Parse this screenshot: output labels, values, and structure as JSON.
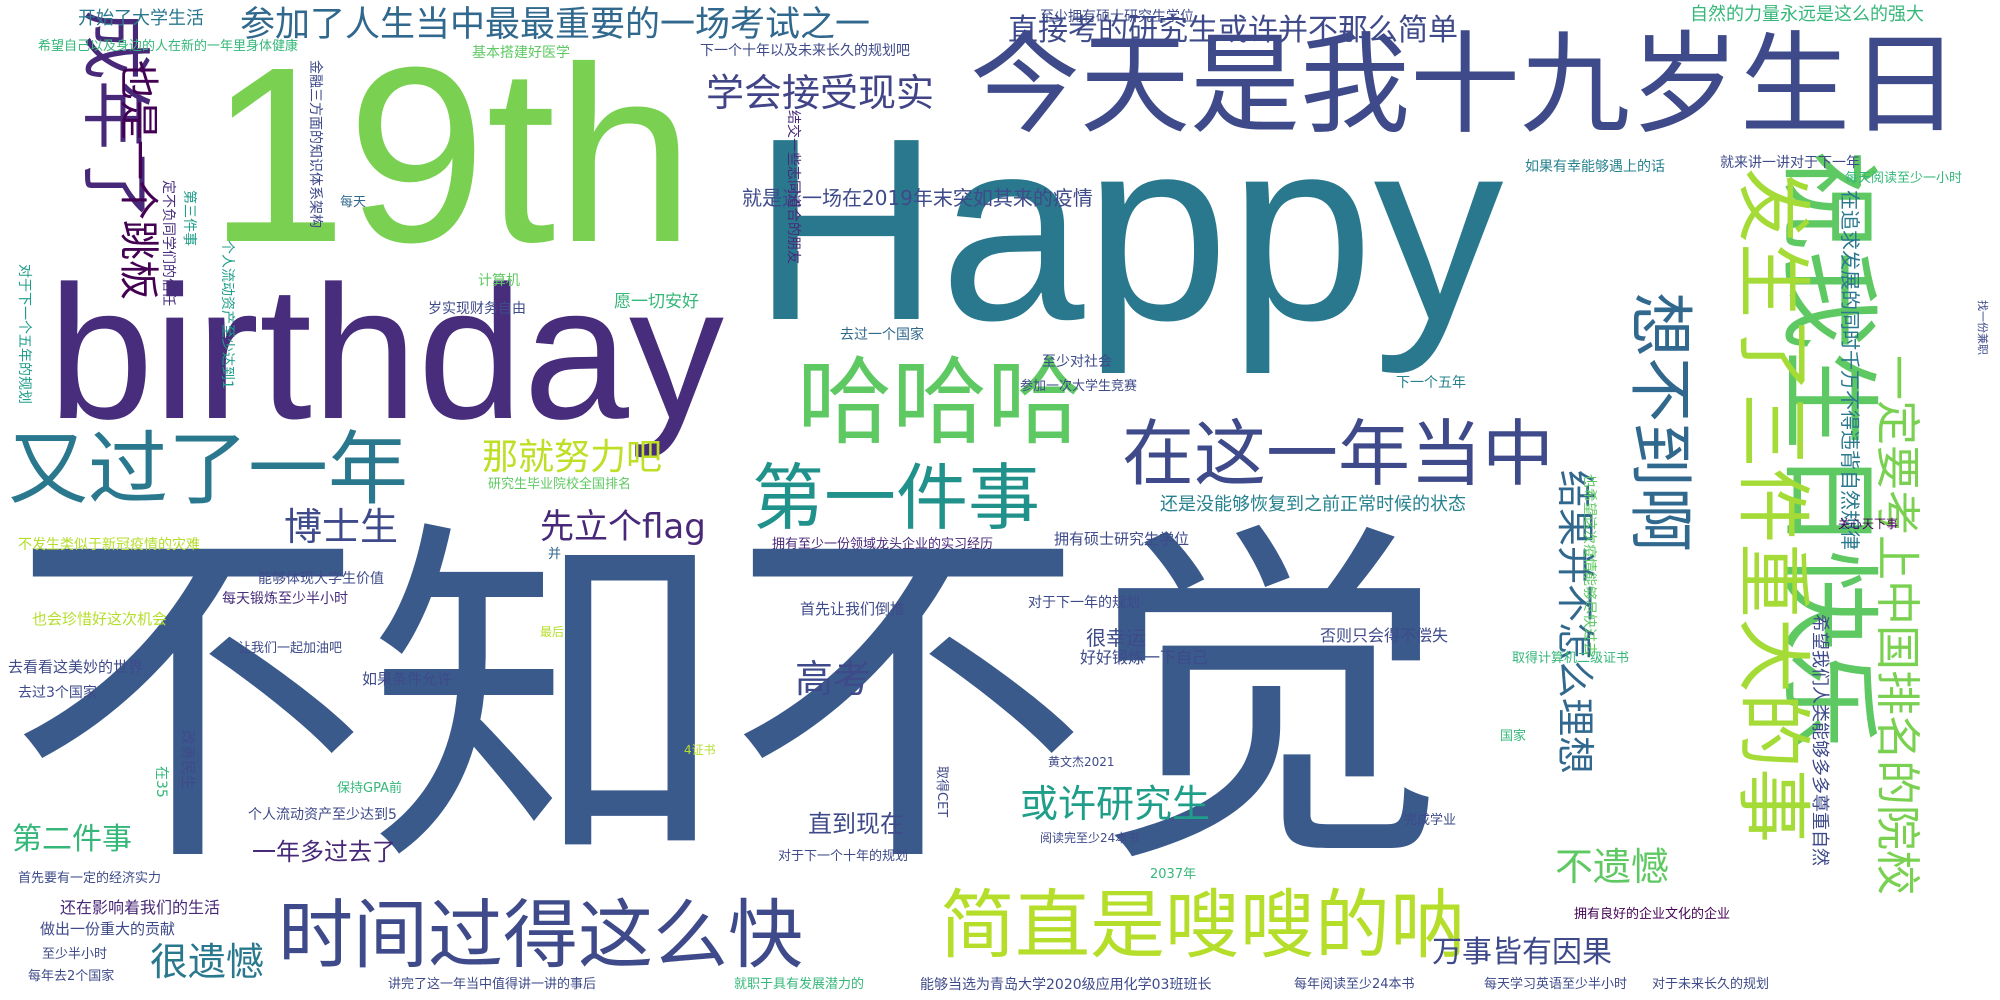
{
  "words": [
    {
      "text": "不知不觉",
      "color": "#3b5a8c"
    },
    {
      "text": "Happy",
      "color": "#2a788e"
    },
    {
      "text": "19th",
      "color": "#7ad151"
    },
    {
      "text": "birthday",
      "color": "#472d7b"
    },
    {
      "text": "今天是我十九岁生日",
      "color": "#3e4a89"
    },
    {
      "text": "祝我生日快乐",
      "color": "#5ec962"
    },
    {
      "text": "发生了三件重大的事",
      "color": "#a5db36"
    },
    {
      "text": "想不到啊",
      "color": "#31688e"
    },
    {
      "text": "一定要考上中国排名的院校",
      "color": "#7ad151"
    },
    {
      "text": "哈哈哈",
      "color": "#5ec962"
    },
    {
      "text": "又过了一年",
      "color": "#2a788e"
    },
    {
      "text": "时间过得这么快",
      "color": "#3e4a89"
    },
    {
      "text": "简直是嗖嗖的呐",
      "color": "#b5de2b"
    },
    {
      "text": "第一件事",
      "color": "#21918c"
    },
    {
      "text": "在这一年当中",
      "color": "#3e4a89"
    },
    {
      "text": "成年了",
      "color": "#482878"
    },
    {
      "text": "也是一个跳板",
      "color": "#440154"
    },
    {
      "text": "参加了人生当中最最重要的一场考试之一",
      "color": "#31688e"
    },
    {
      "text": "直接考的研究生或许并不那么简单",
      "color": "#3e4a89"
    },
    {
      "text": "学会接受现实",
      "color": "#414487"
    },
    {
      "text": "那就努力吧",
      "color": "#bddf26"
    },
    {
      "text": "博士生",
      "color": "#3e4a89"
    },
    {
      "text": "先立个flag",
      "color": "#482878"
    },
    {
      "text": "结果并不怎么理想",
      "color": "#31688e"
    },
    {
      "text": "就是这一场在2019年末突如其来的疫情",
      "color": "#3e4a89"
    },
    {
      "text": "还是没能够恢复到之前正常时候的状态",
      "color": "#26828e"
    },
    {
      "text": "或许研究生",
      "color": "#1f9e89"
    },
    {
      "text": "高考",
      "color": "#3e4a89"
    },
    {
      "text": "第二件事",
      "color": "#35b779"
    },
    {
      "text": "很遗憾",
      "color": "#2a788e"
    },
    {
      "text": "不遗憾",
      "color": "#5ec962"
    },
    {
      "text": "万事皆有因果",
      "color": "#3e4a89"
    },
    {
      "text": "直到现在",
      "color": "#3e4a89"
    },
    {
      "text": "一年多过去了",
      "color": "#482878"
    },
    {
      "text": "自然的力量永远是这么的强大",
      "color": "#35b779"
    },
    {
      "text": "开始了大学生活",
      "color": "#2a788e"
    },
    {
      "text": "至少拥有硕士研究生学位",
      "color": "#3e4a89"
    },
    {
      "text": "下一个十年以及未来长久的规划吧",
      "color": "#3e4a89"
    },
    {
      "text": "希望自己以及身边的人在新的一年里身体健康",
      "color": "#35b779"
    },
    {
      "text": "基本搭建好医学",
      "color": "#5ec962"
    },
    {
      "text": "金融三方面的知识体系架构",
      "color": "#3e4a89"
    },
    {
      "text": "结交一些志同道合的朋友",
      "color": "#482878"
    },
    {
      "text": "如果有幸能够遇上的话",
      "color": "#26828e"
    },
    {
      "text": "就来讲一讲对于下一年",
      "color": "#3e4a89"
    },
    {
      "text": "每天阅读至少一小时",
      "color": "#35b779"
    },
    {
      "text": "在追求发展的同时千万不得违背自然规律",
      "color": "#2a788e"
    },
    {
      "text": "定不负同学们的信任",
      "color": "#472d7b"
    },
    {
      "text": "第三件事",
      "color": "#1f9e89"
    },
    {
      "text": "每天",
      "color": "#31688e"
    },
    {
      "text": "计算机",
      "color": "#5ec962"
    },
    {
      "text": "对于下一个五年的规划",
      "color": "#1f9e89"
    },
    {
      "text": "个人流动资产至少达到1",
      "color": "#1f9e89"
    },
    {
      "text": "岁实现财务自由",
      "color": "#3e4a89"
    },
    {
      "text": "愿一切安好",
      "color": "#35b779"
    },
    {
      "text": "去过一个国家",
      "color": "#31688e"
    },
    {
      "text": "至少对社会",
      "color": "#3e4a89"
    },
    {
      "text": "参加一次大学生竞赛",
      "color": "#3e4a89"
    },
    {
      "text": "下一个五年",
      "color": "#26828e"
    },
    {
      "text": "找一份兼职",
      "color": "#3e4a89"
    },
    {
      "text": "研究生毕业院校全国排名",
      "color": "#5ec962"
    },
    {
      "text": "拥有至少一份领域龙头企业的实习经历",
      "color": "#482878"
    },
    {
      "text": "拥有硕士研究生学位",
      "color": "#3e4a89"
    },
    {
      "text": "关心天下事",
      "color": "#440154"
    },
    {
      "text": "不发生类似于新冠疫情的灾难",
      "color": "#b5de2b"
    },
    {
      "text": "并",
      "color": "#31688e"
    },
    {
      "text": "能够体现大学生价值",
      "color": "#3e4a89"
    },
    {
      "text": "每天锻炼至少半小时",
      "color": "#472d7b"
    },
    {
      "text": "首先让我们倒推",
      "color": "#3e4a89"
    },
    {
      "text": "对于下一年的规划",
      "color": "#3e4a89"
    },
    {
      "text": "很幸运",
      "color": "#3e4a89"
    },
    {
      "text": "也会珍惜好这次机会",
      "color": "#b5de2b"
    },
    {
      "text": "最后",
      "color": "#b5de2b"
    },
    {
      "text": "让我们一起加油吧",
      "color": "#3e4a89"
    },
    {
      "text": "好好锻炼一下自己",
      "color": "#3e4a89"
    },
    {
      "text": "否则只会得不偿失",
      "color": "#3e4a89"
    },
    {
      "text": "取得计算机二级证书",
      "color": "#35b779"
    },
    {
      "text": "也希望这次疫情能够尽快过去",
      "color": "#5ec962"
    },
    {
      "text": "希望我们人类能够多多尊重自然",
      "color": "#3e4a89"
    },
    {
      "text": "去看看这美妙的世界",
      "color": "#3e4a89"
    },
    {
      "text": "如果条件允许",
      "color": "#3e4a89"
    },
    {
      "text": "去过3个国家",
      "color": "#3e4a89"
    },
    {
      "text": "改善民生",
      "color": "#3e4a89"
    },
    {
      "text": "在35",
      "color": "#35b779"
    },
    {
      "text": "4证书",
      "color": "#b5de2b"
    },
    {
      "text": "国家",
      "color": "#35b779"
    },
    {
      "text": "黄文杰2021",
      "color": "#3e4a89"
    },
    {
      "text": "保持GPA前",
      "color": "#35b779"
    },
    {
      "text": "取得CET",
      "color": "#3e4a89"
    },
    {
      "text": "个人流动资产至少达到5",
      "color": "#3e4a89"
    },
    {
      "text": "完成学业",
      "color": "#3e4a89"
    },
    {
      "text": "阅读完至少24本书",
      "color": "#3e4a89"
    },
    {
      "text": "2037年",
      "color": "#35b779"
    },
    {
      "text": "对于下一个十年的规划",
      "color": "#3e4a89"
    },
    {
      "text": "首先要有一定的经济实力",
      "color": "#3e4a89"
    },
    {
      "text": "还在影响着我们的生活",
      "color": "#482878"
    },
    {
      "text": "做出一份重大的贡献",
      "color": "#3e4a89"
    },
    {
      "text": "至少半小时",
      "color": "#3e4a89"
    },
    {
      "text": "每年去2个国家",
      "color": "#3e4a89"
    },
    {
      "text": "讲完了这一年当中值得讲一讲的事后",
      "color": "#3e4a89"
    },
    {
      "text": "就职于具有发展潜力的",
      "color": "#35b779"
    },
    {
      "text": "能够当选为青岛大学2020级应用化学03班班长",
      "color": "#3e4a89"
    },
    {
      "text": "每年阅读至少24本书",
      "color": "#3e4a89"
    },
    {
      "text": "每天学习英语至少半小时",
      "color": "#3e4a89"
    },
    {
      "text": "对于未来长久的规划",
      "color": "#3e4a89"
    },
    {
      "text": "拥有良好的企业文化的企业",
      "color": "#440154"
    }
  ]
}
